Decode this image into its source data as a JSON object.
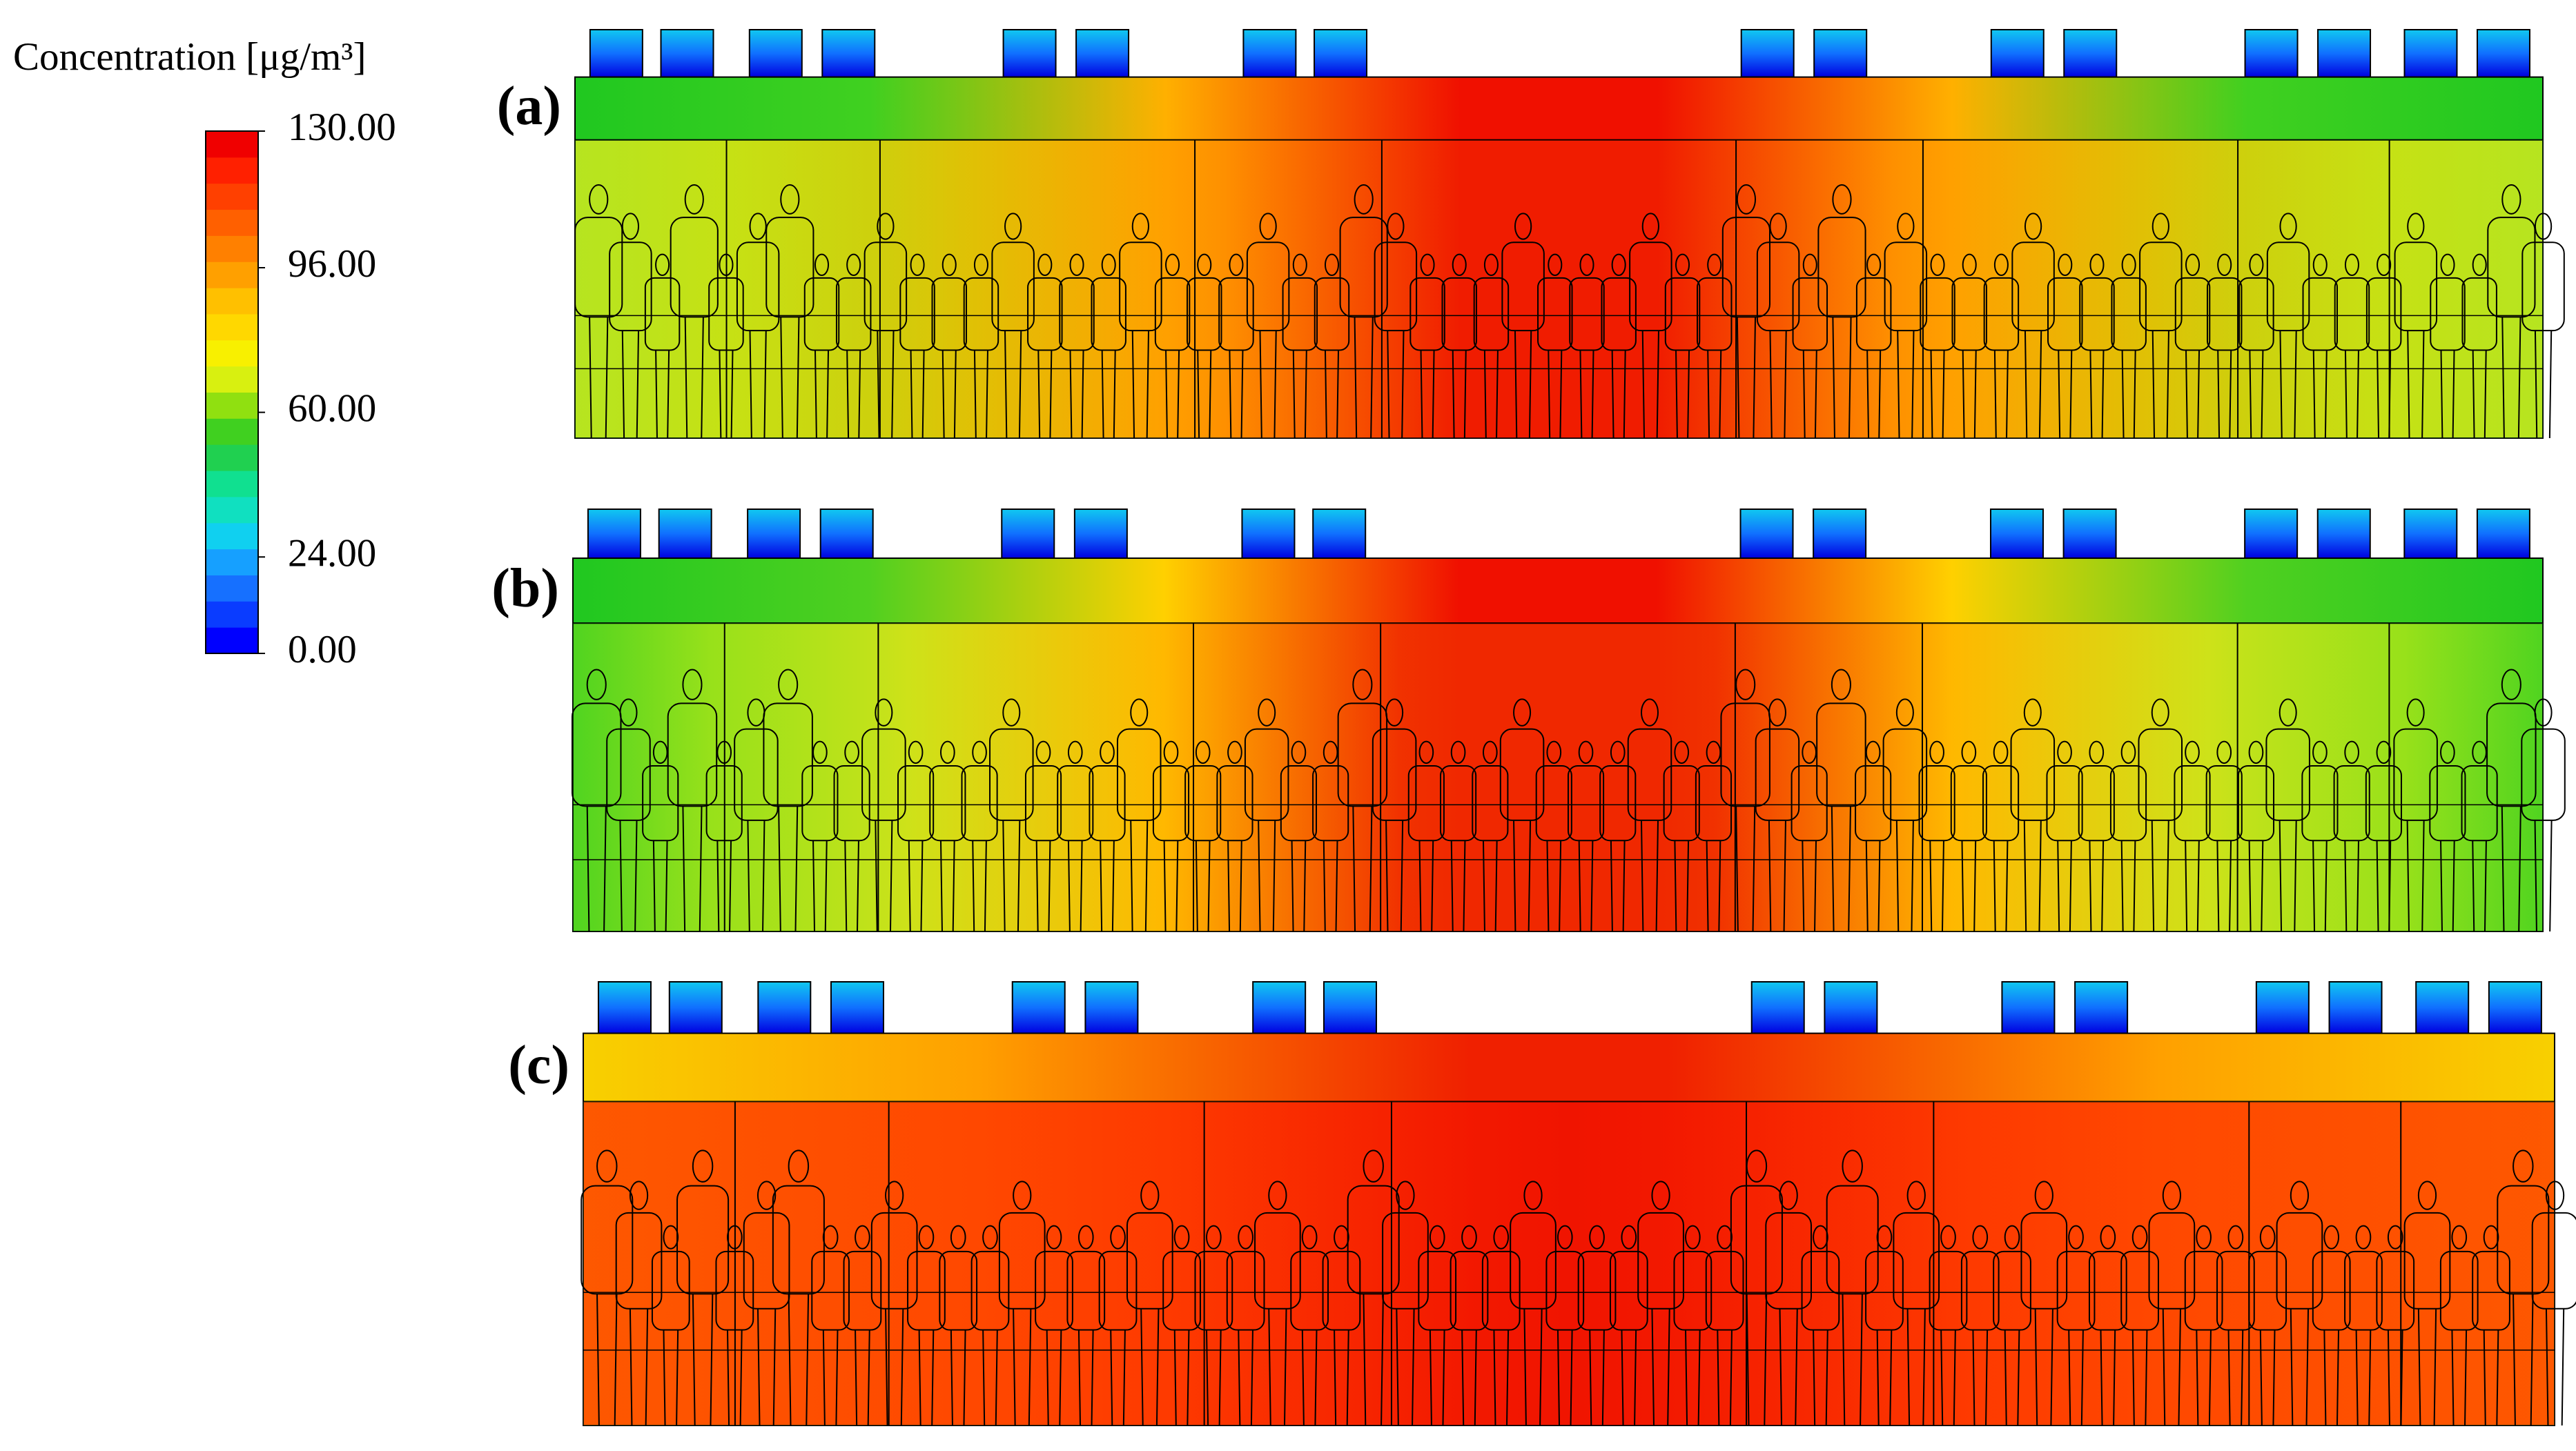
{
  "legend": {
    "title": "Concentration [μg/m³]",
    "range": [
      0,
      130
    ],
    "ticks": [
      {
        "value": 130,
        "label": "130.00"
      },
      {
        "value": 96,
        "label": "96.00"
      },
      {
        "value": 60,
        "label": "60.00"
      },
      {
        "value": 24,
        "label": "24.00"
      },
      {
        "value": 0,
        "label": "0.00"
      }
    ],
    "colors": [
      "#0000ff",
      "#0a3cff",
      "#1670ff",
      "#16a0ff",
      "#10d0f0",
      "#10e0c0",
      "#10e090",
      "#20d050",
      "#40d020",
      "#90e010",
      "#d8f010",
      "#f8f000",
      "#ffd800",
      "#ffc000",
      "#ffa000",
      "#ff8000",
      "#ff6000",
      "#ff4000",
      "#ff2000",
      "#f00000"
    ]
  },
  "panels": [
    {
      "label": "(a)"
    },
    {
      "label": "(b)"
    },
    {
      "label": "(c)"
    }
  ]
}
